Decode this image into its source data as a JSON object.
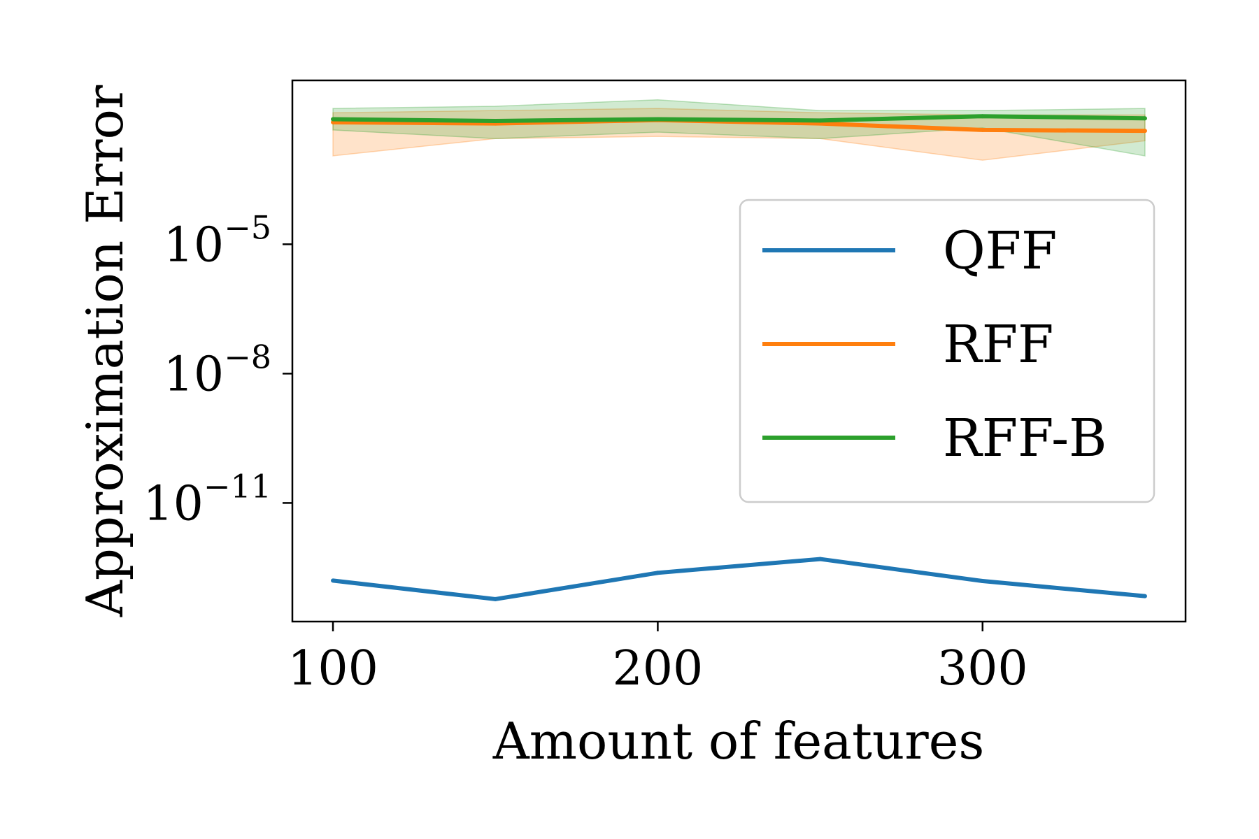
{
  "chart_data": {
    "type": "line",
    "xlabel": "Amount of features",
    "ylabel": "Approximation Error",
    "yscale": "log",
    "x": [
      100,
      150,
      200,
      250,
      300,
      350
    ],
    "xlim": [
      87.5,
      362.5
    ],
    "ylim_log10": [
      -13.75,
      -1.2
    ],
    "x_ticks": [
      100,
      200,
      300
    ],
    "x_tick_labels": [
      "100",
      "200",
      "300"
    ],
    "y_ticks_log10": [
      -5,
      -8,
      -11
    ],
    "y_tick_bases": [
      "10",
      "10",
      "10"
    ],
    "y_tick_exponents": [
      "−5",
      "−8",
      "−11"
    ],
    "grid": false,
    "legend_position": "right",
    "series": [
      {
        "name": "QFF",
        "color": "#1f77b4",
        "log10_mean": [
          -12.8,
          -13.23,
          -12.62,
          -12.3,
          -12.81,
          -13.16
        ]
      },
      {
        "name": "RFF",
        "color": "#ff7f0e",
        "log10_mean": [
          -2.17,
          -2.2,
          -2.12,
          -2.2,
          -2.35,
          -2.37
        ],
        "log10_lower": [
          -2.95,
          -2.55,
          -2.5,
          -2.55,
          -3.05,
          -2.6
        ],
        "log10_upper": [
          -1.95,
          -1.9,
          -1.85,
          -1.95,
          -2.0,
          -2.0
        ]
      },
      {
        "name": "RFF-B",
        "color": "#2ca02c",
        "log10_mean": [
          -2.1,
          -2.14,
          -2.1,
          -2.13,
          -2.03,
          -2.08
        ],
        "log10_lower": [
          -2.35,
          -2.55,
          -2.4,
          -2.55,
          -2.3,
          -2.95
        ],
        "log10_upper": [
          -1.85,
          -1.8,
          -1.65,
          -1.9,
          -1.9,
          -1.85
        ]
      }
    ]
  }
}
